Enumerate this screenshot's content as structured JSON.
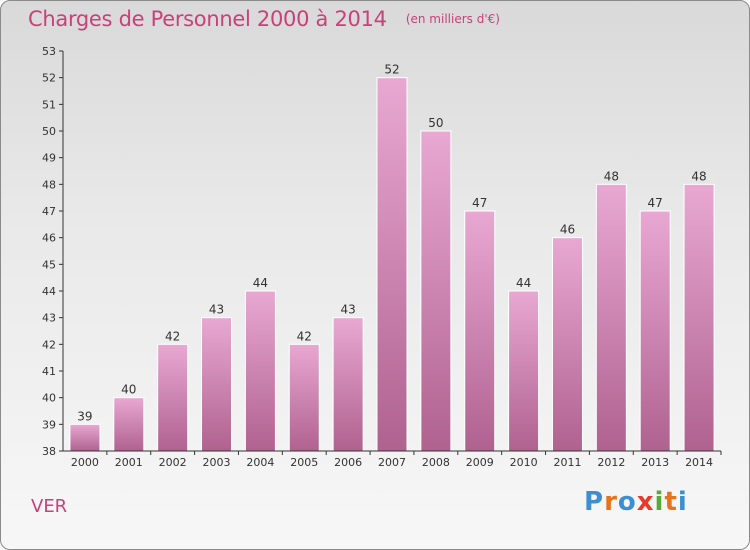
{
  "header": {
    "title": "Charges de Personnel 2000 à 2014",
    "subtitle": "(en milliers d'€)"
  },
  "footer": {
    "place": "VER",
    "logo_letters": [
      "P",
      "r",
      "o",
      "x",
      "i",
      "t",
      "i"
    ],
    "logo_colors": [
      "#3c8fd1",
      "#e8731c",
      "#3c8fd1",
      "#e83a2a",
      "#58a83a",
      "#e8731c",
      "#3c8fd1"
    ]
  },
  "colors": {
    "bar_top": "#e8a8d2",
    "bar_bottom": "#b0628f",
    "axis": "#333333",
    "text": "#333333",
    "accent": "#c8417a"
  },
  "chart_data": {
    "type": "bar",
    "title": "Charges de Personnel 2000 à 2014",
    "subtitle": "(en milliers d'€)",
    "categories": [
      "2000",
      "2001",
      "2002",
      "2003",
      "2004",
      "2005",
      "2006",
      "2007",
      "2008",
      "2009",
      "2010",
      "2011",
      "2012",
      "2013",
      "2014"
    ],
    "values": [
      39,
      40,
      42,
      43,
      44,
      42,
      43,
      52,
      50,
      47,
      44,
      46,
      48,
      47,
      48
    ],
    "ylim": [
      38,
      53
    ],
    "yticks": [
      38,
      39,
      40,
      41,
      42,
      43,
      44,
      45,
      46,
      47,
      48,
      49,
      50,
      51,
      52,
      53
    ],
    "xlabel": "",
    "ylabel": "",
    "grid": false,
    "legend": "none"
  }
}
